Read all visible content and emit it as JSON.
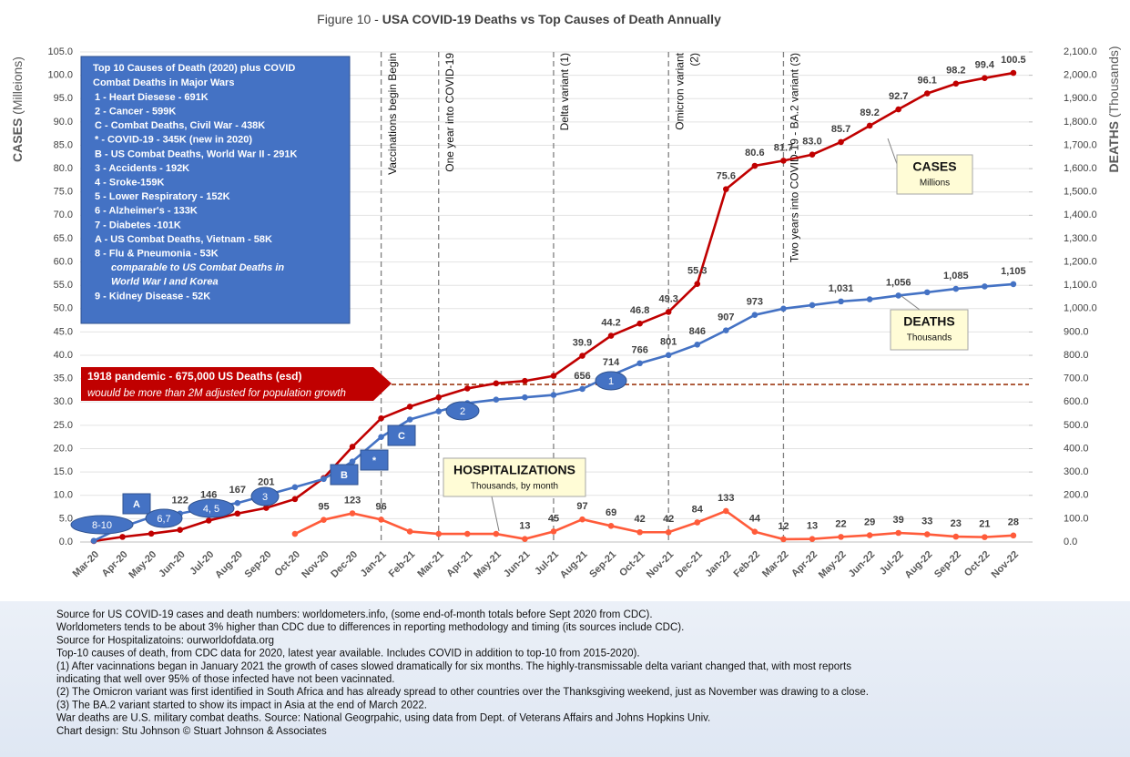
{
  "chart_data": {
    "type": "line",
    "title_prefix": "Figure 10 - ",
    "title": "USA COVID-19 Deaths vs Top Causes of Death Annually",
    "ylabel": "CASES",
    "ylabel_unit": "(Milleions)",
    "y2label": "DEATHS",
    "y2label_unit": "(Thousands)",
    "categories": [
      "Mar-20",
      "Apr-20",
      "May-20",
      "Jun-20",
      "Jul-20",
      "Aug-20",
      "Sep-20",
      "Oct-20",
      "Nov-20",
      "Dec-20",
      "Jan-21",
      "Feb-21",
      "Mar-21",
      "Apr-21",
      "May-21",
      "Jun-21",
      "Jul-21",
      "Aug-21",
      "Sep-21",
      "Oct-21",
      "Nov-21",
      "Dec-21",
      "Jan-22",
      "Feb-22",
      "Mar-22",
      "Apr-22",
      "May-22",
      "Jun-22",
      "Jul-22",
      "Aug-22",
      "Sep-22",
      "Oct-22",
      "Nov-22"
    ],
    "ylim": [
      0,
      105
    ],
    "yticks": [
      {
        "value": 0,
        "label": "0.0"
      },
      {
        "value": 5,
        "label": "5.0"
      },
      {
        "value": 10,
        "label": "10.0"
      },
      {
        "value": 15,
        "label": "15.0"
      },
      {
        "value": 20,
        "label": "20.0"
      },
      {
        "value": 25,
        "label": "25.0"
      },
      {
        "value": 30,
        "label": "30.0"
      },
      {
        "value": 35,
        "label": "35.0"
      },
      {
        "value": 40,
        "label": "40.0"
      },
      {
        "value": 45,
        "label": "45.0"
      },
      {
        "value": 50,
        "label": "50.0"
      },
      {
        "value": 55,
        "label": "55.0"
      },
      {
        "value": 60,
        "label": "60.0"
      },
      {
        "value": 65,
        "label": "65.0"
      },
      {
        "value": 70,
        "label": "70.0"
      },
      {
        "value": 75,
        "label": "75.0"
      },
      {
        "value": 80,
        "label": "80.0"
      },
      {
        "value": 85,
        "label": "85.0"
      },
      {
        "value": 90,
        "label": "90.0"
      },
      {
        "value": 95,
        "label": "95.0"
      },
      {
        "value": 100,
        "label": "100.0"
      },
      {
        "value": 105,
        "label": "105.0"
      }
    ],
    "y2lim": [
      0,
      2100
    ],
    "y2ticks": [
      {
        "value": 0,
        "label": "0.0"
      },
      {
        "value": 100,
        "label": "100.0"
      },
      {
        "value": 200,
        "label": "200.0"
      },
      {
        "value": 300,
        "label": "300.0"
      },
      {
        "value": 400,
        "label": "400.0"
      },
      {
        "value": 500,
        "label": "500.0"
      },
      {
        "value": 600,
        "label": "600.0"
      },
      {
        "value": 700,
        "label": "700.0"
      },
      {
        "value": 800,
        "label": "800.0"
      },
      {
        "value": 900,
        "label": "900.0"
      },
      {
        "value": 1000,
        "label": "1,000.0"
      },
      {
        "value": 1100,
        "label": "1,100.0"
      },
      {
        "value": 1200,
        "label": "1,200.0"
      },
      {
        "value": 1300,
        "label": "1,300.0"
      },
      {
        "value": 1400,
        "label": "1,400.0"
      },
      {
        "value": 1500,
        "label": "1,500.0"
      },
      {
        "value": 1600,
        "label": "1,600.0"
      },
      {
        "value": 1700,
        "label": "1,700.0"
      },
      {
        "value": 1800,
        "label": "1,800.0"
      },
      {
        "value": 1900,
        "label": "1,900.0"
      },
      {
        "value": 2000,
        "label": "2,000.0"
      },
      {
        "value": 2100,
        "label": "2,100.0"
      }
    ],
    "grid": true,
    "series": [
      {
        "name": "CASES",
        "unit": "Millions",
        "color": "#c00000",
        "values": [
          0.2,
          1.1,
          1.8,
          2.6,
          4.6,
          6.1,
          7.3,
          9.2,
          13.7,
          20.4,
          26.5,
          29.0,
          31.0,
          32.9,
          34.0,
          34.5,
          35.6,
          39.9,
          44.2,
          46.8,
          49.3,
          55.3,
          75.6,
          80.6,
          81.7,
          83.0,
          85.7,
          89.2,
          92.7,
          96.1,
          98.2,
          99.4,
          100.5
        ],
        "value_labels": [
          null,
          null,
          null,
          null,
          null,
          null,
          null,
          null,
          null,
          null,
          null,
          null,
          null,
          null,
          null,
          null,
          null,
          "39.9",
          "44.2",
          "46.8",
          "49.3",
          "55.3",
          "75.6",
          "80.6",
          "81.7",
          "83.0",
          "85.7",
          "89.2",
          "92.7",
          "96.1",
          "98.2",
          "99.4",
          "100.5"
        ]
      },
      {
        "name": "DEATHS",
        "unit": "Thousands",
        "color": "#4472c4",
        "axis": "y2",
        "values": [
          5,
          65,
          107,
          122,
          146,
          167,
          201,
          235,
          270,
          345,
          450,
          525,
          560,
          595,
          610,
          620,
          630,
          656,
          714,
          766,
          801,
          846,
          907,
          973,
          1000,
          1015,
          1031,
          1040,
          1056,
          1070,
          1085,
          1095,
          1105
        ],
        "value_labels": [
          null,
          null,
          null,
          "122",
          "146",
          "167",
          "201",
          null,
          null,
          null,
          null,
          null,
          null,
          null,
          null,
          null,
          null,
          "656",
          "714",
          "766",
          "801",
          "846",
          "907",
          "973",
          null,
          null,
          "1,031",
          null,
          "1,056",
          null,
          "1,085",
          null,
          "1,105"
        ]
      },
      {
        "name": "HOSPITALIZATIONS",
        "unit": "Thousands, by month",
        "color": "#ff5b3a",
        "axis": "y2",
        "values": [
          null,
          null,
          null,
          null,
          null,
          null,
          null,
          35,
          95,
          123,
          96,
          45,
          35,
          35,
          35,
          13,
          45,
          97,
          69,
          42,
          42,
          84,
          133,
          44,
          12,
          13,
          22,
          29,
          39,
          33,
          23,
          21,
          28
        ],
        "value_labels": [
          null,
          null,
          null,
          null,
          null,
          null,
          null,
          null,
          "95",
          "123",
          "96",
          null,
          null,
          null,
          null,
          "13",
          "45",
          "97",
          "69",
          "42",
          "42",
          "84",
          "133",
          "44",
          "12",
          "13",
          "22",
          "29",
          "39",
          "33",
          "23",
          "21",
          "28"
        ]
      }
    ],
    "events": [
      {
        "category": "Jan-21",
        "lines": [
          "Vaccinations begin Begin"
        ]
      },
      {
        "category": "Mar-21",
        "lines": [
          "One year into COVID-19"
        ]
      },
      {
        "category": "Jul-21",
        "lines": [
          "Delta variant (1)"
        ]
      },
      {
        "category": "Nov-21",
        "lines": [
          "Omicron variant",
          "(2)"
        ]
      },
      {
        "category": "Mar-22",
        "lines": [
          "Two years into COVID-19  -  BA.2 variant (3)"
        ]
      }
    ],
    "reference_line": {
      "value": 675,
      "axis": "y2",
      "label": "1918 pandemic - 675,000 US Deaths (esd)",
      "note": "wouuld be more than 2M adjusted for population growth"
    },
    "legend_box": {
      "title": [
        "Top 10 Causes of Death (2020) plus COVID",
        "Combat Deaths in Major Wars"
      ],
      "items": [
        " 1 - Heart Diesese - 691K",
        " 2 - Cancer - 599K",
        " C - Combat Deaths, Civil War - 438K",
        " * - COVID-19 - 345K  (new in 2020)",
        " B - US Combat Deaths, World War II - 291K",
        " 3 - Accidents - 192K",
        " 4 - Sroke-159K",
        " 5 - Lower Respiratory - 152K",
        " 6 - Alzheimer's - 133K",
        " 7 - Diabetes -101K",
        " A - US Combat Deaths, Vietnam - 58K",
        " 8 - Flu & Pneumonia - 53K",
        "comparable to US Combat Deaths in",
        "World War I and Korea",
        " 9 - Kidney Disease - 52K"
      ]
    },
    "markers": [
      "8-10",
      "A",
      "6,7",
      "4, 5",
      "3",
      "B",
      "*",
      "C",
      "2",
      "1"
    ]
  },
  "footnotes": [
    "Source for US COVID-19 cases and death numbers: worldometers.info, (some end-of-month totals before Sept 2020 from CDC).",
    "Worldometers tends to be about 3% higher than CDC due to differences in reporting methodology and timing (its sources include CDC).",
    "Source for Hospitalizatoins: ourworldofdata.org",
    "Top-10 causes of death, from CDC data for 2020, latest year available.  Includes COVID in addition to top-10 from 2015-2020).",
    "(1) After vacinnations began in January 2021 the growth of cases slowed dramatically for six months. The highly-transmissable delta variant changed that, with most reports",
    "indicating that well over 95% of those infected have not been vacinnated.",
    "(2) The Omicron variant was first identified in South Africa and has already spread to other countries over the Thanksgiving weekend, just as November was drawing to a close.",
    "(3) The BA.2 variant started to show its impact in Asia at the end of March 2022.",
    "War deaths are U.S. military combat deaths.  Source: National Geogrpahic, using data from Dept. of Veterans Affairs and Johns Hopkins Univ.",
    "Chart design: Stu Johnson © Stuart Johnson & Associates"
  ]
}
